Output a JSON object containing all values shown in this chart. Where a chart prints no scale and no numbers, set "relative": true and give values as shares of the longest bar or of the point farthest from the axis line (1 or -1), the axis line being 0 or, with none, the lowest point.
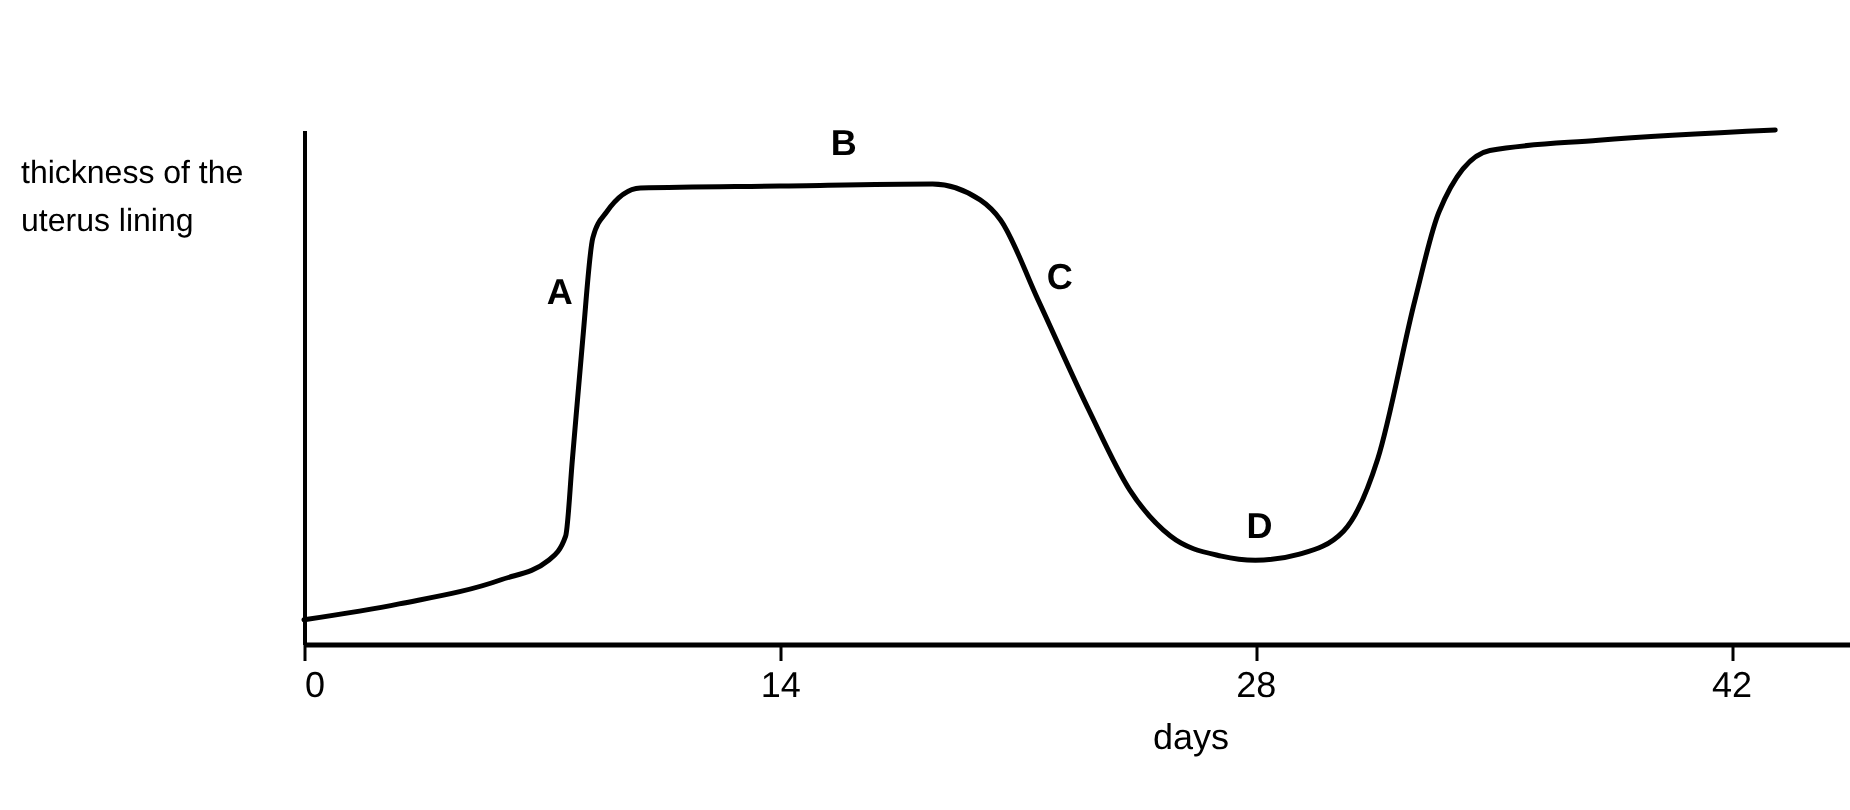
{
  "chart_data": {
    "type": "line",
    "relative": true,
    "xlabel": "days",
    "ylabel": "thickness of the uterus lining",
    "xlim": [
      0,
      45.5
    ],
    "xticks": [
      0,
      14,
      28,
      42
    ],
    "color": "#000000",
    "x": [
      0,
      2.8,
      5.8,
      7.2,
      7.7,
      7.9,
      8.2,
      8.5,
      8.9,
      9.9,
      14,
      18.5,
      19.9,
      20.5,
      21.6,
      23.1,
      24.3,
      25.5,
      27,
      28,
      29.3,
      30.6,
      31.6,
      32.7,
      33.4,
      34.9,
      38.1,
      43.3
    ],
    "values": [
      0.047,
      0.078,
      0.125,
      0.163,
      0.21,
      0.36,
      0.59,
      0.79,
      0.84,
      0.887,
      0.891,
      0.895,
      0.864,
      0.825,
      0.67,
      0.455,
      0.3,
      0.21,
      0.171,
      0.163,
      0.175,
      0.22,
      0.36,
      0.67,
      0.84,
      0.96,
      0.98,
      1
    ],
    "annotations": [
      {
        "text": "A",
        "x": 8.35,
        "y": 0.68
      },
      {
        "text": "B",
        "x": 16,
        "y": 0.893
      },
      {
        "text": "C",
        "x": 21.3,
        "y": 0.71
      },
      {
        "text": "D",
        "x": 28,
        "y": 0.163
      }
    ]
  }
}
